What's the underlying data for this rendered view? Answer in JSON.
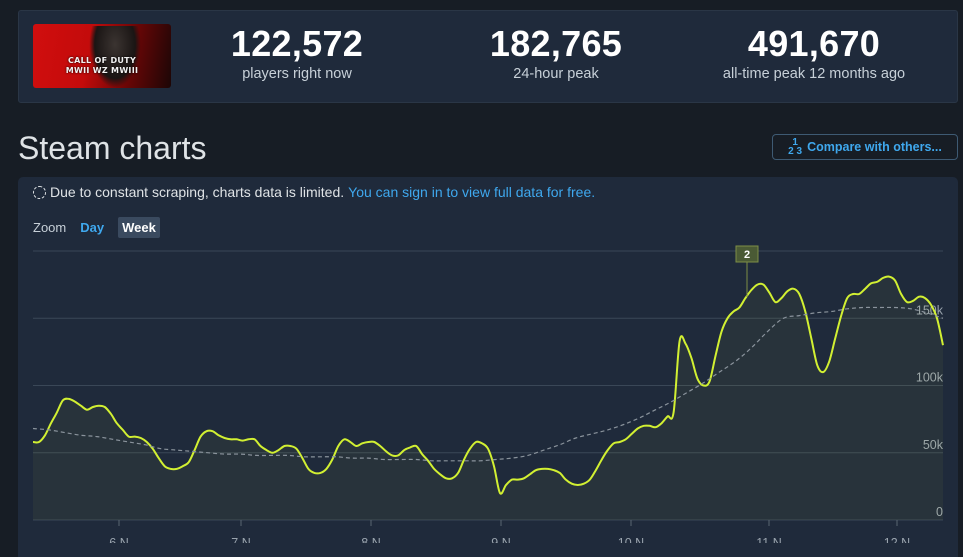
{
  "stats": {
    "current": {
      "value": "122,572",
      "label": "players right now"
    },
    "peak24": {
      "value": "182,765",
      "label": "24-hour peak"
    },
    "alltime": {
      "value": "491,670",
      "label": "all-time peak 12 months ago"
    }
  },
  "game": {
    "logo_text_line1": "CALL OF DUTY",
    "logo_text_line2": "MWII WZ MWIII"
  },
  "page_title": "Steam charts",
  "compare_button": {
    "icon": "fraction-icon",
    "label": "Compare with others..."
  },
  "notice": {
    "text": "Due to constant scraping, charts data is limited.",
    "link": "You can sign in to view full data for free."
  },
  "zoom": {
    "label": "Zoom",
    "day": "Day",
    "week": "Week"
  },
  "colors": {
    "accent": "#3fa8ee",
    "line": "#d2f032",
    "avg": "#8a939c",
    "bg": "#171d25",
    "panel": "#1f2a3b"
  },
  "chart_data": {
    "type": "line",
    "x_ticks": [
      "6 N",
      "7 N",
      "8 N",
      "9 N",
      "10 N",
      "11 N",
      "12 N"
    ],
    "y_ticks": [
      "0",
      "50k",
      "100k",
      "150k"
    ],
    "ylim": [
      0,
      200000
    ],
    "marker_label": "2",
    "grid": true,
    "series": [
      {
        "values": [
          58000,
          58000,
          63000,
          72000,
          80000,
          89000,
          90000,
          88000,
          85000,
          82000,
          84000,
          85000,
          84000,
          79000,
          72000,
          67000,
          62000,
          62000,
          61000,
          58000,
          53000,
          46000,
          40000,
          38000,
          38000,
          40000,
          43000,
          52000,
          62000,
          66000,
          66000,
          63000,
          61000,
          60000,
          60000,
          59000,
          60000,
          60000,
          55000,
          52000,
          50000,
          52000,
          55000,
          55000,
          53000,
          46000,
          38000,
          35000,
          35000,
          38000,
          45000,
          55000,
          60000,
          58000,
          55000,
          57000,
          58000,
          58000,
          55000,
          51000,
          48000,
          48000,
          52000,
          54000,
          55000,
          49000,
          44000,
          38000,
          34000,
          31000,
          31000,
          35000,
          45000,
          53000,
          58000,
          57000,
          53000,
          40000,
          20000,
          26000,
          30000,
          30000,
          31000,
          34000,
          37000,
          38000,
          38000,
          37000,
          35000,
          30000,
          27000,
          26000,
          27000,
          30000,
          37000,
          45000,
          52000,
          57000,
          58000,
          60000,
          64000,
          68000,
          70000,
          70000,
          69000,
          72000,
          77000,
          80000,
          133000,
          131000,
          120000,
          105000,
          100000,
          103000,
          122000,
          140000,
          150000,
          155000,
          158000,
          165000,
          171000,
          175000,
          175000,
          169000,
          162000,
          165000,
          170000,
          172000,
          168000,
          155000,
          135000,
          115000,
          110000,
          118000,
          135000,
          152000,
          165000,
          168000,
          168000,
          172000,
          176000,
          177000,
          180000,
          181000,
          178000,
          168000,
          162000,
          163000,
          166000,
          165000,
          160000,
          150000,
          130000
        ]
      },
      {
        "values": [
          68000,
          67000,
          65000,
          63000,
          62000,
          60000,
          58000,
          56000,
          53000,
          52000,
          51000,
          50000,
          49000,
          49000,
          48000,
          48000,
          48000,
          47000,
          47000,
          47000,
          46000,
          46000,
          45000,
          45000,
          45000,
          44000,
          44000,
          44000,
          44000,
          45000,
          46000,
          48000,
          52000,
          56000,
          61000,
          64000,
          67000,
          71000,
          76000,
          82000,
          88000,
          95000,
          102000,
          110000,
          118000,
          128000,
          140000,
          150000,
          152000,
          154000,
          155000,
          157000,
          158000,
          158000,
          158000,
          157000,
          154000,
          150000
        ],
        "style": "dashed"
      }
    ]
  }
}
